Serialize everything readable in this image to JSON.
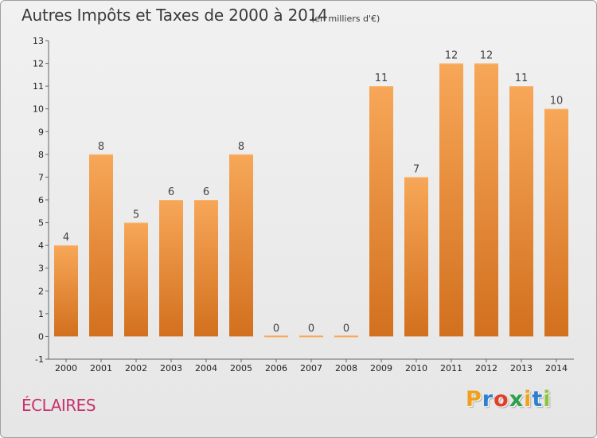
{
  "chart_data": {
    "type": "bar",
    "title": "Autres Impôts et Taxes de 2000 à 2014",
    "subtitle": "(en milliers d'€)",
    "categories": [
      "2000",
      "2001",
      "2002",
      "2003",
      "2004",
      "2005",
      "2006",
      "2007",
      "2008",
      "2009",
      "2010",
      "2011",
      "2012",
      "2013",
      "2014"
    ],
    "values": [
      4,
      8,
      5,
      6,
      6,
      8,
      0,
      0,
      0,
      11,
      7,
      12,
      12,
      11,
      10
    ],
    "data_labels": [
      "4",
      "8",
      "5",
      "6",
      "6",
      "8",
      "0",
      "0",
      "0",
      "11",
      "7",
      "12",
      "12",
      "11",
      "10"
    ],
    "ylim": [
      -1,
      13
    ],
    "yticks": [
      -1,
      0,
      1,
      2,
      3,
      4,
      5,
      6,
      7,
      8,
      9,
      10,
      11,
      12,
      13
    ],
    "xlabel": "",
    "ylabel": "",
    "grid": false,
    "colors": {
      "bar_light": "#f7a758",
      "bar_dark": "#d2701e",
      "bar_top": "#f9b870"
    }
  },
  "commune": "ÉCLAIRES",
  "logo": {
    "letters": [
      "P",
      "r",
      "o",
      "x",
      "i",
      "t",
      "i"
    ],
    "colors": [
      "#f0a01c",
      "#2e7fd0",
      "#e0402a",
      "#2ea04a",
      "#f0a01c",
      "#2e7fd0",
      "#8cc43c"
    ]
  }
}
